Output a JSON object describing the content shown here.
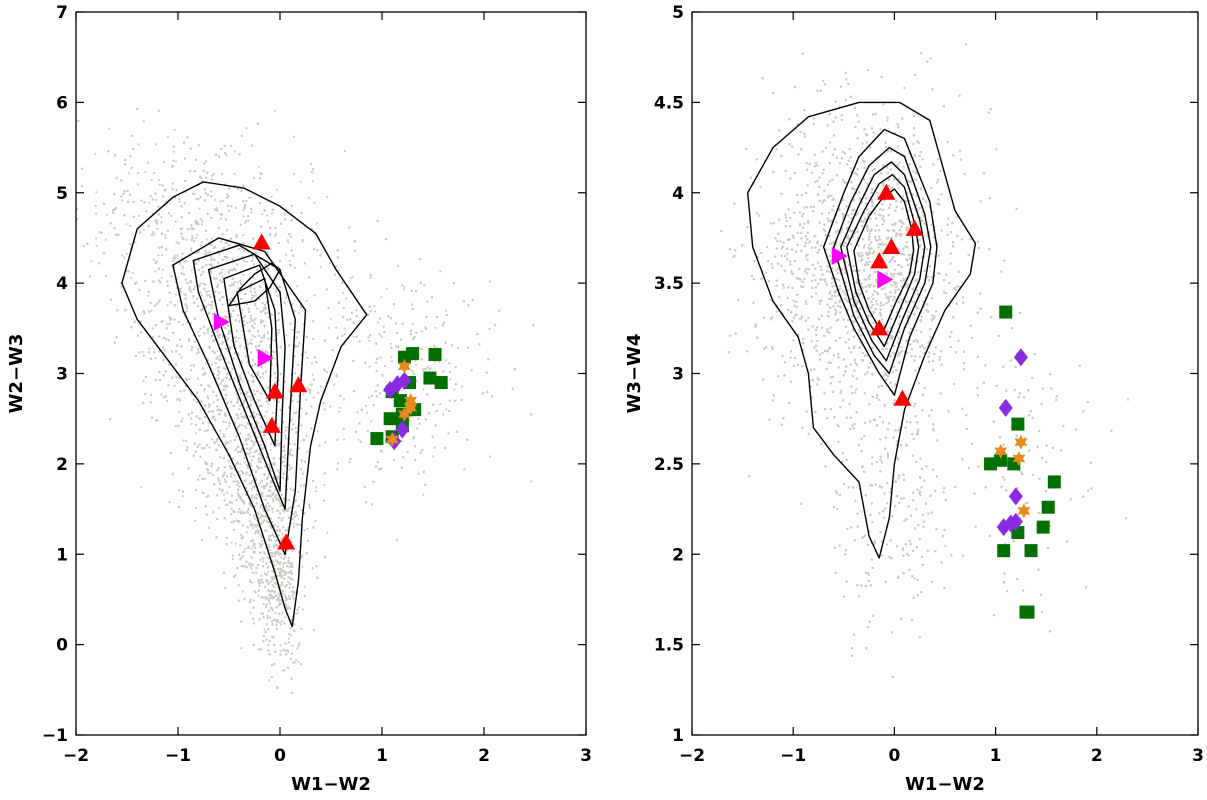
{
  "chart_data": [
    {
      "type": "scatter",
      "xlabel": "W1−W2",
      "ylabel": "W2−W3",
      "xlim": [
        -2,
        3
      ],
      "ylim": [
        -1,
        7
      ],
      "xticks": [
        "−2",
        "−1",
        "0",
        "1",
        "2",
        "3"
      ],
      "yticks": [
        "−1",
        "0",
        "1",
        "2",
        "3",
        "4",
        "5",
        "6",
        "7"
      ],
      "grid": false,
      "background_cloud_color": "#cfcac3",
      "contours": [
        [
          [
            -1.4,
            3.6
          ],
          [
            -1.55,
            4.0
          ],
          [
            -1.4,
            4.6
          ],
          [
            -1.05,
            4.95
          ],
          [
            -0.75,
            5.12
          ],
          [
            -0.35,
            5.05
          ],
          [
            0.0,
            4.85
          ],
          [
            0.35,
            4.55
          ],
          [
            0.55,
            4.15
          ],
          [
            0.85,
            3.65
          ],
          [
            0.6,
            3.3
          ],
          [
            0.4,
            2.7
          ],
          [
            0.3,
            2.2
          ],
          [
            0.22,
            1.4
          ],
          [
            0.18,
            0.7
          ],
          [
            0.12,
            0.2
          ],
          [
            0.05,
            0.4
          ],
          [
            -0.05,
            0.8
          ],
          [
            -0.25,
            1.5
          ],
          [
            -0.5,
            2.1
          ],
          [
            -0.8,
            2.7
          ],
          [
            -1.1,
            3.15
          ],
          [
            -1.4,
            3.6
          ]
        ],
        [
          [
            -1.05,
            4.2
          ],
          [
            -0.6,
            4.5
          ],
          [
            -0.15,
            4.35
          ],
          [
            0.25,
            3.7
          ],
          [
            0.2,
            2.8
          ],
          [
            0.15,
            1.7
          ],
          [
            0.05,
            1.0
          ],
          [
            -0.15,
            1.5
          ],
          [
            -0.4,
            2.3
          ],
          [
            -0.7,
            3.1
          ],
          [
            -0.95,
            3.7
          ],
          [
            -1.05,
            4.2
          ]
        ],
        [
          [
            -0.85,
            4.25
          ],
          [
            -0.4,
            4.42
          ],
          [
            0.0,
            4.15
          ],
          [
            0.15,
            3.6
          ],
          [
            0.1,
            2.6
          ],
          [
            0.05,
            1.5
          ],
          [
            -0.1,
            1.9
          ],
          [
            -0.35,
            2.6
          ],
          [
            -0.6,
            3.3
          ],
          [
            -0.8,
            3.9
          ],
          [
            -0.85,
            4.25
          ]
        ],
        [
          [
            -0.7,
            4.15
          ],
          [
            -0.25,
            4.32
          ],
          [
            0.0,
            3.9
          ],
          [
            0.05,
            3.3
          ],
          [
            0.02,
            2.5
          ],
          [
            0.0,
            1.7
          ],
          [
            -0.15,
            2.2
          ],
          [
            -0.4,
            2.9
          ],
          [
            -0.6,
            3.6
          ],
          [
            -0.7,
            4.15
          ]
        ],
        [
          [
            -0.55,
            4.05
          ],
          [
            -0.2,
            4.2
          ],
          [
            -0.05,
            3.7
          ],
          [
            -0.02,
            3.0
          ],
          [
            -0.05,
            2.2
          ],
          [
            -0.25,
            2.7
          ],
          [
            -0.45,
            3.3
          ],
          [
            -0.55,
            4.05
          ]
        ],
        [
          [
            -0.42,
            3.9
          ],
          [
            -0.15,
            4.05
          ],
          [
            -0.08,
            3.5
          ],
          [
            -0.1,
            2.7
          ],
          [
            -0.3,
            3.1
          ],
          [
            -0.42,
            3.9
          ]
        ],
        [
          [
            -0.5,
            3.75
          ],
          [
            -0.38,
            3.95
          ],
          [
            -0.25,
            4.1
          ],
          [
            -0.08,
            4.22
          ],
          [
            0.0,
            4.15
          ],
          [
            -0.1,
            3.95
          ],
          [
            -0.25,
            3.8
          ],
          [
            -0.5,
            3.75
          ]
        ]
      ],
      "series": [
        {
          "marker": "triangle-up",
          "color": "#ff0000",
          "x": [
            -0.18,
            0.18,
            -0.05,
            -0.08,
            0.06
          ],
          "y": [
            4.45,
            2.87,
            2.8,
            2.42,
            1.13
          ]
        },
        {
          "marker": "triangle-right",
          "color": "#ff00ff",
          "x": [
            -0.58,
            -0.15
          ],
          "y": [
            3.57,
            3.17
          ]
        },
        {
          "marker": "square",
          "color": "#007000",
          "x": [
            1.3,
            1.52,
            1.58,
            1.47,
            1.22,
            1.18,
            1.32,
            1.1,
            1.2,
            0.95,
            1.27,
            1.08,
            1.1,
            1.2
          ],
          "y": [
            3.22,
            3.21,
            2.9,
            2.95,
            3.18,
            2.7,
            2.6,
            2.8,
            2.55,
            2.28,
            2.9,
            2.5,
            2.3,
            2.42
          ]
        },
        {
          "marker": "diamond",
          "color": "#8a2be2",
          "x": [
            1.22,
            1.15,
            1.08,
            1.2,
            1.12
          ],
          "y": [
            2.92,
            2.88,
            2.82,
            2.38,
            2.25
          ]
        },
        {
          "marker": "star",
          "color": "#e68a1e",
          "x": [
            1.22,
            1.28,
            1.22,
            1.28,
            1.1
          ],
          "y": [
            3.08,
            2.7,
            2.55,
            2.62,
            2.27
          ]
        }
      ]
    },
    {
      "type": "scatter",
      "xlabel": "W1−W2",
      "ylabel": "W3−W4",
      "xlim": [
        -2,
        3
      ],
      "ylim": [
        1,
        5
      ],
      "xticks": [
        "−2",
        "−1",
        "0",
        "1",
        "2",
        "3"
      ],
      "yticks": [
        "1",
        "1.5",
        "2",
        "2.5",
        "3",
        "3.5",
        "4",
        "4.5",
        "5"
      ],
      "grid": false,
      "background_cloud_color": "#cfcac3",
      "contours": [
        [
          [
            -1.4,
            3.7
          ],
          [
            -1.45,
            4.0
          ],
          [
            -1.2,
            4.25
          ],
          [
            -0.85,
            4.42
          ],
          [
            -0.35,
            4.5
          ],
          [
            0.05,
            4.5
          ],
          [
            0.35,
            4.4
          ],
          [
            0.5,
            4.1
          ],
          [
            0.6,
            3.9
          ],
          [
            0.8,
            3.72
          ],
          [
            0.75,
            3.55
          ],
          [
            0.5,
            3.35
          ],
          [
            0.3,
            3.1
          ],
          [
            0.1,
            2.8
          ],
          [
            0.0,
            2.5
          ],
          [
            -0.05,
            2.2
          ],
          [
            -0.15,
            1.98
          ],
          [
            -0.25,
            2.1
          ],
          [
            -0.35,
            2.4
          ],
          [
            -0.6,
            2.55
          ],
          [
            -0.8,
            2.7
          ],
          [
            -0.85,
            3.0
          ],
          [
            -0.95,
            3.2
          ],
          [
            -1.2,
            3.4
          ],
          [
            -1.4,
            3.7
          ]
        ],
        [
          [
            -0.7,
            3.7
          ],
          [
            -0.5,
            4.0
          ],
          [
            -0.35,
            4.2
          ],
          [
            -0.1,
            4.35
          ],
          [
            0.1,
            4.3
          ],
          [
            0.35,
            3.95
          ],
          [
            0.42,
            3.7
          ],
          [
            0.38,
            3.5
          ],
          [
            0.15,
            3.2
          ],
          [
            0.0,
            2.88
          ],
          [
            -0.15,
            3.0
          ],
          [
            -0.4,
            3.25
          ],
          [
            -0.55,
            3.45
          ],
          [
            -0.7,
            3.7
          ]
        ],
        [
          [
            -0.6,
            3.7
          ],
          [
            -0.43,
            3.95
          ],
          [
            -0.25,
            4.15
          ],
          [
            -0.05,
            4.25
          ],
          [
            0.1,
            4.2
          ],
          [
            0.3,
            3.88
          ],
          [
            0.36,
            3.7
          ],
          [
            0.3,
            3.5
          ],
          [
            0.1,
            3.25
          ],
          [
            -0.05,
            3.0
          ],
          [
            -0.2,
            3.1
          ],
          [
            -0.4,
            3.32
          ],
          [
            -0.6,
            3.7
          ]
        ],
        [
          [
            -0.53,
            3.7
          ],
          [
            -0.35,
            3.93
          ],
          [
            -0.2,
            4.1
          ],
          [
            -0.03,
            4.17
          ],
          [
            0.1,
            4.1
          ],
          [
            0.25,
            3.85
          ],
          [
            0.3,
            3.7
          ],
          [
            0.25,
            3.52
          ],
          [
            0.08,
            3.3
          ],
          [
            -0.08,
            3.07
          ],
          [
            -0.22,
            3.18
          ],
          [
            -0.4,
            3.4
          ],
          [
            -0.53,
            3.7
          ]
        ],
        [
          [
            -0.47,
            3.7
          ],
          [
            -0.3,
            3.9
          ],
          [
            -0.15,
            4.05
          ],
          [
            -0.02,
            4.1
          ],
          [
            0.1,
            4.03
          ],
          [
            0.2,
            3.83
          ],
          [
            0.24,
            3.7
          ],
          [
            0.2,
            3.55
          ],
          [
            0.05,
            3.35
          ],
          [
            -0.1,
            3.15
          ],
          [
            -0.25,
            3.28
          ],
          [
            -0.38,
            3.45
          ],
          [
            -0.47,
            3.7
          ]
        ],
        [
          [
            -0.4,
            3.68
          ],
          [
            -0.25,
            3.87
          ],
          [
            -0.12,
            3.97
          ],
          [
            0.0,
            4.02
          ],
          [
            0.1,
            3.95
          ],
          [
            0.17,
            3.8
          ],
          [
            0.19,
            3.68
          ],
          [
            0.15,
            3.55
          ],
          [
            0.02,
            3.4
          ],
          [
            -0.12,
            3.22
          ],
          [
            -0.25,
            3.35
          ],
          [
            -0.35,
            3.5
          ],
          [
            -0.4,
            3.68
          ]
        ]
      ],
      "series": [
        {
          "marker": "triangle-up",
          "color": "#ff0000",
          "x": [
            -0.08,
            0.2,
            -0.03,
            -0.15,
            -0.15,
            0.08
          ],
          "y": [
            4.0,
            3.8,
            3.7,
            3.62,
            3.25,
            2.86
          ]
        },
        {
          "marker": "triangle-right",
          "color": "#ff00ff",
          "x": [
            -0.55,
            -0.1
          ],
          "y": [
            3.65,
            3.52
          ]
        },
        {
          "marker": "square",
          "color": "#007000",
          "x": [
            1.1,
            1.22,
            1.58,
            0.95,
            1.05,
            1.18,
            1.52,
            1.47,
            1.22,
            1.08,
            1.35,
            1.3,
            1.32
          ],
          "y": [
            3.34,
            2.72,
            2.4,
            2.5,
            2.52,
            2.5,
            2.26,
            2.15,
            2.12,
            2.02,
            2.02,
            1.68,
            1.68
          ]
        },
        {
          "marker": "diamond",
          "color": "#8a2be2",
          "x": [
            1.25,
            1.1,
            1.2,
            1.08,
            1.15,
            1.2
          ],
          "y": [
            3.09,
            2.81,
            2.32,
            2.15,
            2.17,
            2.18
          ]
        },
        {
          "marker": "star",
          "color": "#e68a1e",
          "x": [
            1.05,
            1.25,
            1.23,
            1.28
          ],
          "y": [
            2.57,
            2.62,
            2.53,
            2.24
          ]
        }
      ]
    }
  ]
}
